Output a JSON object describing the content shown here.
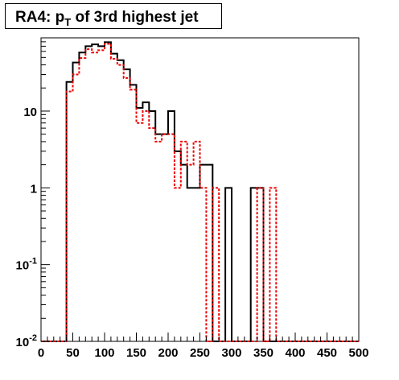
{
  "chart_data": {
    "type": "histogram",
    "title": {
      "prefix": "RA4: p",
      "subscript": "T",
      "suffix": " of 3rd highest jet"
    },
    "xlabel": "",
    "ylabel": "",
    "xlim": [
      0,
      500
    ],
    "ylim": [
      0.01,
      90
    ],
    "y_scale": "log",
    "bin_width": 10,
    "x_ticks": [
      0,
      50,
      100,
      150,
      200,
      250,
      300,
      350,
      400,
      450,
      500
    ],
    "x_tick_labels": [
      "0",
      "50",
      "100",
      "150",
      "200",
      "250",
      "300",
      "350",
      "400",
      "450",
      "500"
    ],
    "y_ticks": [
      {
        "base": "10",
        "exp": "-2",
        "value": 0.01
      },
      {
        "base": "10",
        "exp": "-1",
        "value": 0.1
      },
      {
        "base": "1",
        "exp": "",
        "value": 1
      },
      {
        "base": "10",
        "exp": "",
        "value": 10
      }
    ],
    "grid": false,
    "series": [
      {
        "color": "#000000",
        "style": "solid",
        "bin_edges": [
          40,
          50,
          60,
          70,
          80,
          90,
          100,
          110,
          120,
          130,
          140,
          150,
          160,
          170,
          180,
          190,
          200,
          210,
          220,
          230,
          240,
          250,
          260,
          270,
          280,
          290,
          300,
          310,
          320,
          330,
          340,
          350,
          360,
          370
        ],
        "values": [
          24,
          43,
          58,
          70,
          74,
          70,
          79,
          56,
          46,
          35,
          22,
          11,
          13,
          10,
          5,
          5,
          10,
          3,
          2,
          1,
          1,
          2,
          2,
          0,
          0,
          1,
          0,
          0,
          0,
          1,
          1,
          0,
          0
        ]
      },
      {
        "color": "#ee0000",
        "style": "dotted",
        "bin_edges": [
          40,
          50,
          60,
          70,
          80,
          90,
          100,
          110,
          120,
          130,
          140,
          150,
          160,
          170,
          180,
          190,
          200,
          210,
          220,
          230,
          240,
          250,
          260,
          270,
          280,
          290,
          300,
          310,
          320,
          330,
          340,
          350,
          360,
          370
        ],
        "values": [
          18,
          30,
          49,
          64,
          58,
          62,
          75,
          48,
          40,
          27,
          19,
          7,
          10,
          6,
          4,
          5,
          5,
          1,
          4,
          2,
          4,
          1,
          0,
          1,
          0,
          0,
          0,
          0,
          0,
          0,
          1,
          0,
          1
        ]
      }
    ]
  }
}
